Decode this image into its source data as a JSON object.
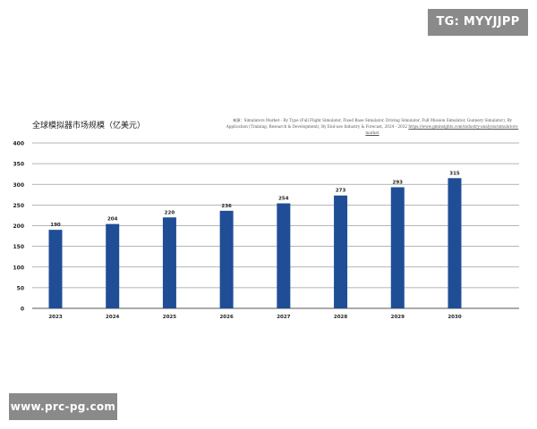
{
  "watermarks": {
    "top_right": "TG: MYYJJPP",
    "bottom_left": "www.prc-pg.com"
  },
  "source": {
    "prefix": "来源：",
    "text": "Simulators Market - By Type (Full Flight Simulator, Fixed Base Simulator, Driving Simulator, Full Mission Simulator, Gunnery Simulator), By Application (Training, Research & Development), By End-use Industry & Forecast, 2024 - 2032",
    "link": "https://www.gminsights.com/industry-analysis/simulators-market"
  },
  "colors": {
    "bar": "#1f4e96",
    "grid": "#9e9e9e",
    "baseline": "#555555",
    "text": "#222222"
  },
  "chart_data": {
    "type": "bar",
    "title": "全球模拟器市场规模（亿美元）",
    "xlabel": "",
    "ylabel": "",
    "categories": [
      "2023",
      "2024",
      "2025",
      "2026",
      "2027",
      "2028",
      "2029",
      "2030"
    ],
    "values": [
      190,
      204,
      220,
      236,
      254,
      273,
      293,
      315
    ],
    "data_labels": [
      "190",
      "204",
      "220",
      "236",
      "254",
      "273",
      "293",
      "315"
    ],
    "ylim": [
      0,
      400
    ],
    "yticks": [
      "0",
      "50",
      "100",
      "150",
      "200",
      "250",
      "300",
      "350",
      "400"
    ],
    "grid": true,
    "legend": "none"
  }
}
